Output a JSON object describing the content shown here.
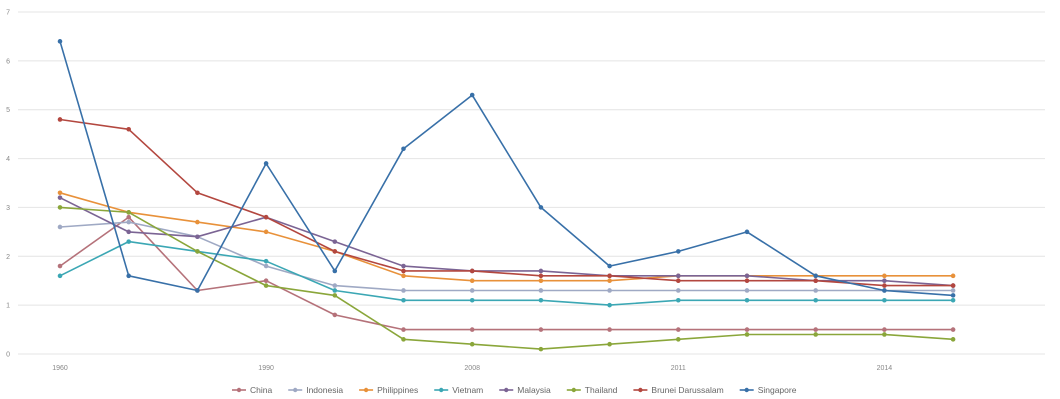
{
  "chart_data": {
    "type": "line",
    "title": "",
    "xlabel": "",
    "ylabel": "",
    "ylim": [
      0,
      7
    ],
    "yticks": [
      0,
      1,
      2,
      3,
      4,
      5,
      6,
      7
    ],
    "grid": true,
    "legend_position": "bottom",
    "x": [
      "1960",
      "",
      "",
      "1990",
      "",
      "",
      "2008",
      "",
      "",
      "2011",
      "",
      "",
      "2014",
      ""
    ],
    "xtick_labels": [
      "1960",
      "1990",
      "2008",
      "2011",
      "2014"
    ],
    "series": [
      {
        "name": "China",
        "color": "#b5727a",
        "values": [
          1.8,
          2.8,
          1.3,
          1.5,
          0.8,
          0.5,
          0.5,
          0.5,
          0.5,
          0.5,
          0.5,
          0.5,
          0.5,
          0.5
        ]
      },
      {
        "name": "Indonesia",
        "color": "#9fa9c4",
        "values": [
          2.6,
          2.7,
          2.4,
          1.8,
          1.4,
          1.3,
          1.3,
          1.3,
          1.3,
          1.3,
          1.3,
          1.3,
          1.3,
          1.3
        ]
      },
      {
        "name": "Philippines",
        "color": "#e8913a",
        "values": [
          3.3,
          2.9,
          2.7,
          2.5,
          2.1,
          1.6,
          1.5,
          1.5,
          1.5,
          1.6,
          1.6,
          1.6,
          1.6,
          1.6
        ]
      },
      {
        "name": "Vietnam",
        "color": "#3ba7b4",
        "values": [
          1.6,
          2.3,
          2.1,
          1.9,
          1.3,
          1.1,
          1.1,
          1.1,
          1.0,
          1.1,
          1.1,
          1.1,
          1.1,
          1.1
        ]
      },
      {
        "name": "Malaysia",
        "color": "#7b6494",
        "values": [
          3.2,
          2.5,
          2.4,
          2.8,
          2.3,
          1.8,
          1.7,
          1.7,
          1.6,
          1.6,
          1.6,
          1.5,
          1.5,
          1.4
        ]
      },
      {
        "name": "Thailand",
        "color": "#8aa63a",
        "values": [
          3.0,
          2.9,
          2.1,
          1.4,
          1.2,
          0.3,
          0.2,
          0.1,
          0.2,
          0.3,
          0.4,
          0.4,
          0.4,
          0.3
        ]
      },
      {
        "name": "Brunei Darussalam",
        "color": "#b3473f",
        "values": [
          4.8,
          4.6,
          3.3,
          2.8,
          2.1,
          1.7,
          1.7,
          1.6,
          1.6,
          1.5,
          1.5,
          1.5,
          1.4,
          1.4
        ]
      },
      {
        "name": "Singapore",
        "color": "#3870a8",
        "values": [
          6.4,
          1.6,
          1.3,
          3.9,
          1.7,
          4.2,
          5.3,
          3.0,
          1.8,
          2.1,
          2.5,
          1.6,
          1.3,
          1.2
        ]
      }
    ]
  }
}
